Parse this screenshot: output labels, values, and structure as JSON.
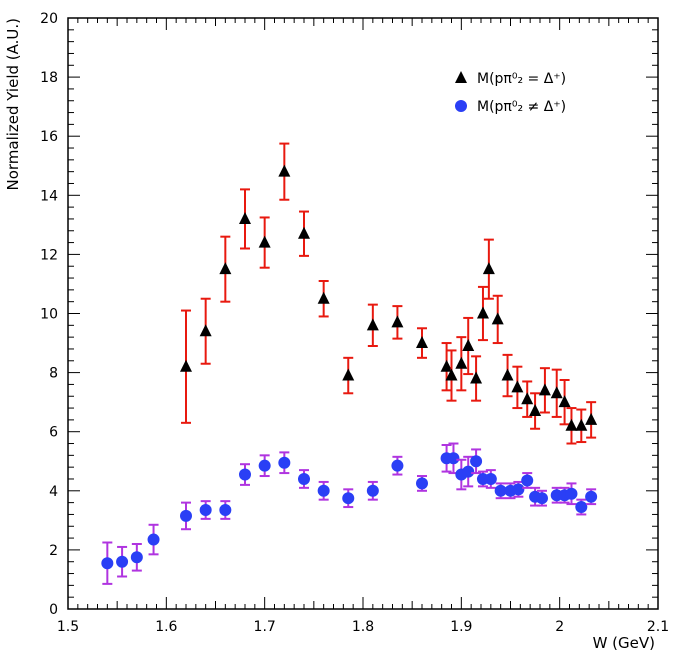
{
  "chart_data": {
    "type": "scatter",
    "title": "",
    "xlabel": "W (GeV)",
    "ylabel": "Normalized Yield (A.U.)",
    "xlim": [
      1.5,
      2.1
    ],
    "ylim": [
      0,
      20
    ],
    "x_ticks": [
      "1.5",
      "1.6",
      "1.7",
      "1.8",
      "1.9",
      "2",
      "2.1"
    ],
    "x_tick_values": [
      1.5,
      1.6,
      1.7,
      1.8,
      1.9,
      2.0,
      2.1
    ],
    "y_ticks": [
      "0",
      "2",
      "4",
      "6",
      "8",
      "10",
      "12",
      "14",
      "16",
      "18",
      "20"
    ],
    "y_tick_values": [
      0,
      2,
      4,
      6,
      8,
      10,
      12,
      14,
      16,
      18,
      20
    ],
    "legend_position": "top-right",
    "series": [
      {
        "name": "M(pπ⁰₂ = Δ⁺)",
        "marker": "triangle",
        "color": "#000000",
        "error_color": "#e8190f",
        "x": [
          1.62,
          1.64,
          1.66,
          1.68,
          1.7,
          1.72,
          1.74,
          1.76,
          1.785,
          1.81,
          1.835,
          1.86,
          1.885,
          1.89,
          1.9,
          1.907,
          1.915,
          1.922,
          1.928,
          1.937,
          1.947,
          1.957,
          1.967,
          1.975,
          1.985,
          1.997,
          2.005,
          2.012,
          2.022,
          2.032
        ],
        "y": [
          8.2,
          9.4,
          11.5,
          13.2,
          12.4,
          14.8,
          12.7,
          10.5,
          7.9,
          9.6,
          9.7,
          9.0,
          8.2,
          7.9,
          8.3,
          8.9,
          7.8,
          10.0,
          11.5,
          9.8,
          7.9,
          7.5,
          7.1,
          6.7,
          7.4,
          7.3,
          7.0,
          6.2,
          6.2,
          6.4
        ],
        "err": [
          1.9,
          1.1,
          1.1,
          1.0,
          0.85,
          0.95,
          0.75,
          0.6,
          0.6,
          0.7,
          0.55,
          0.5,
          0.8,
          0.85,
          0.9,
          0.95,
          0.75,
          0.9,
          1.0,
          0.8,
          0.7,
          0.7,
          0.6,
          0.6,
          0.75,
          0.8,
          0.75,
          0.6,
          0.55,
          0.6
        ]
      },
      {
        "name": "M(pπ⁰₂ ≠ Δ⁺)",
        "marker": "circle",
        "color": "#2a3ff5",
        "error_color": "#b034e0",
        "x": [
          1.54,
          1.555,
          1.57,
          1.587,
          1.62,
          1.64,
          1.66,
          1.68,
          1.7,
          1.72,
          1.74,
          1.76,
          1.785,
          1.81,
          1.835,
          1.86,
          1.885,
          1.892,
          1.9,
          1.907,
          1.915,
          1.922,
          1.93,
          1.94,
          1.95,
          1.958,
          1.967,
          1.975,
          1.982,
          1.997,
          2.005,
          2.012,
          2.022,
          2.032
        ],
        "y": [
          1.55,
          1.6,
          1.75,
          2.35,
          3.15,
          3.35,
          3.35,
          4.55,
          4.85,
          4.95,
          4.4,
          4.0,
          3.75,
          4.0,
          4.85,
          4.25,
          5.1,
          5.1,
          4.55,
          4.65,
          5.0,
          4.4,
          4.4,
          4.0,
          4.0,
          4.05,
          4.35,
          3.8,
          3.75,
          3.85,
          3.85,
          3.9,
          3.45,
          3.8
        ],
        "err": [
          0.7,
          0.5,
          0.45,
          0.5,
          0.45,
          0.3,
          0.3,
          0.35,
          0.35,
          0.35,
          0.3,
          0.3,
          0.3,
          0.3,
          0.3,
          0.25,
          0.45,
          0.5,
          0.5,
          0.5,
          0.4,
          0.25,
          0.3,
          0.25,
          0.25,
          0.25,
          0.25,
          0.3,
          0.25,
          0.25,
          0.25,
          0.35,
          0.25,
          0.25
        ]
      }
    ]
  }
}
